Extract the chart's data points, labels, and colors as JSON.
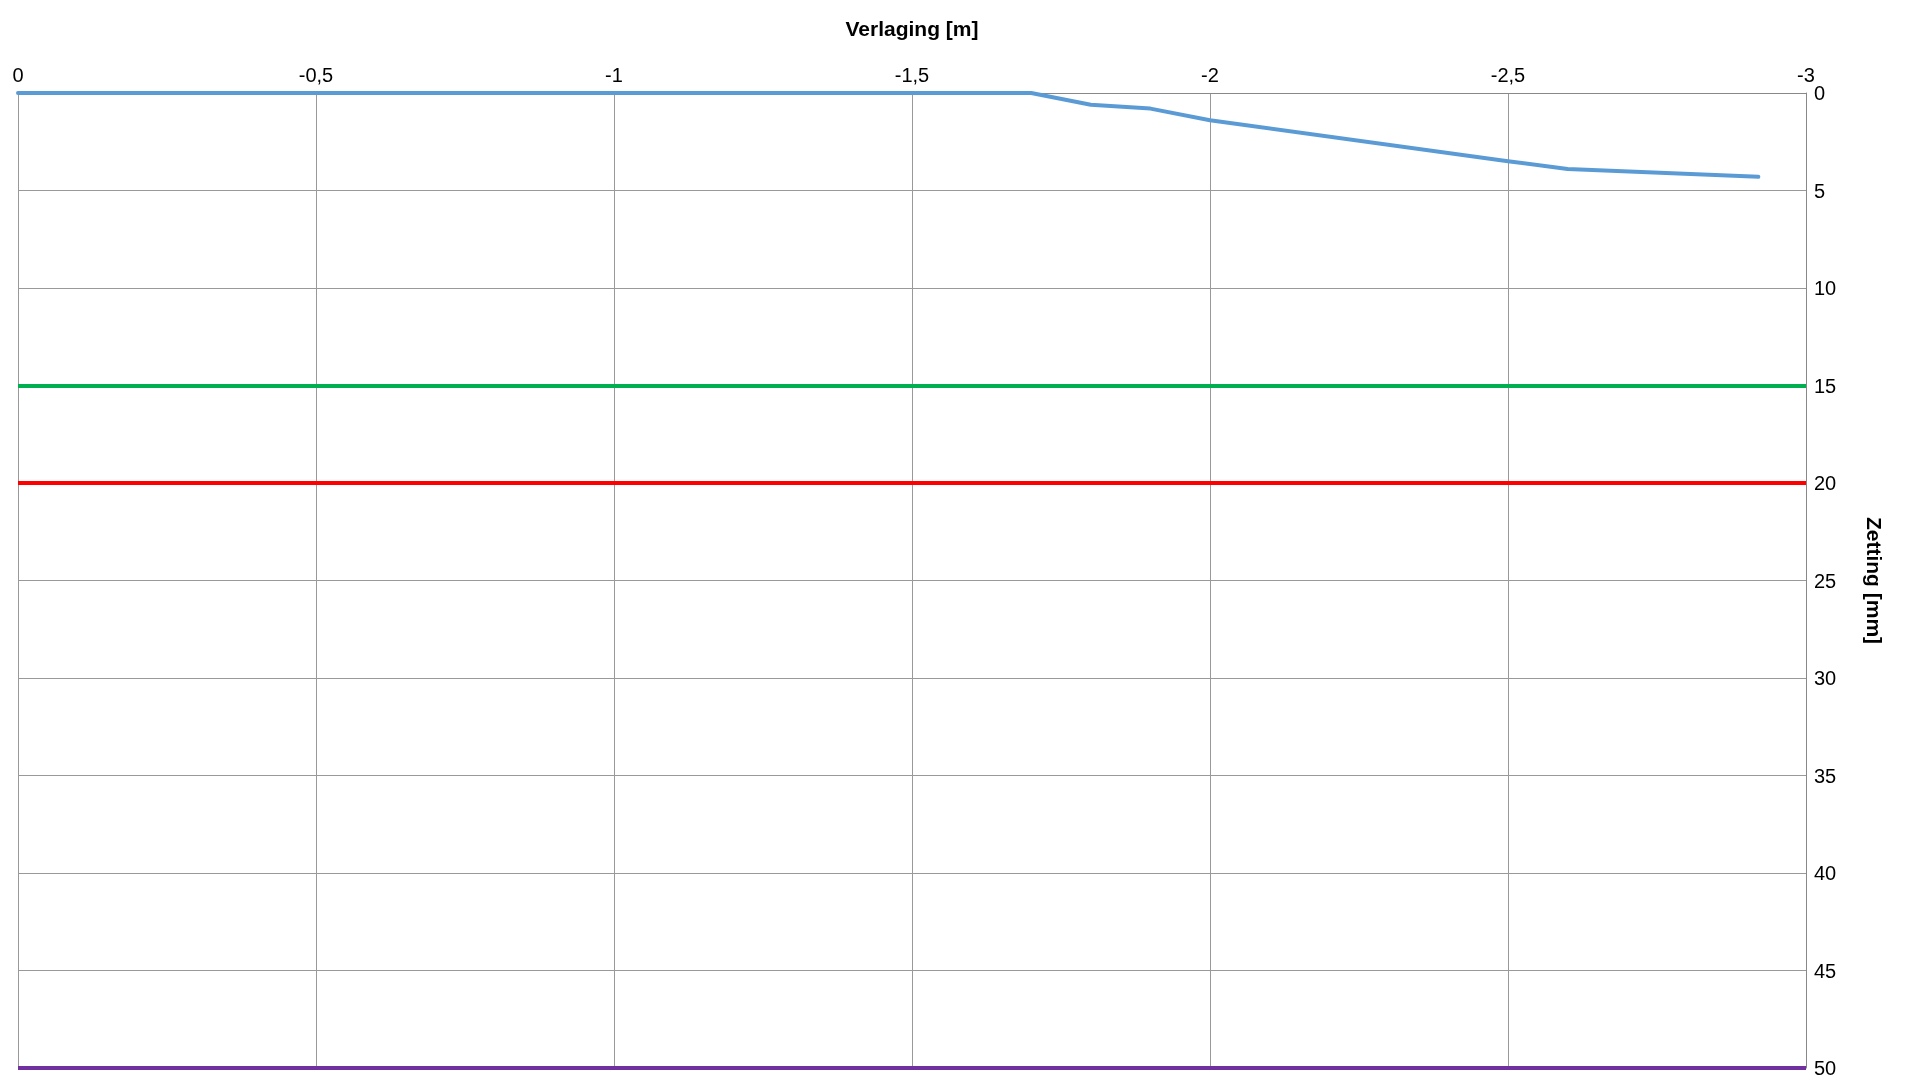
{
  "chart_data": {
    "type": "line",
    "xlabel": "Verlaging [m]",
    "ylabel": "Zetting [mm]",
    "x": [
      0,
      -1.7,
      -1.8,
      -1.9,
      -2.0,
      -2.5,
      -2.6,
      -2.92
    ],
    "series": [
      {
        "color": "#5b9bd5",
        "values": [
          0,
          0,
          0.6,
          0.8,
          1.4,
          3.5,
          3.9,
          4.3
        ]
      }
    ],
    "xlim": [
      0,
      -3
    ],
    "xticks": [
      0,
      {
        "value": -0.5,
        "label": "-0,5"
      },
      -1,
      {
        "value": -1.5,
        "label": "-1,5"
      },
      -2,
      {
        "value": -2.5,
        "label": "-2,5"
      },
      -3
    ],
    "ylim": [
      50,
      0
    ],
    "yticks": [
      0,
      5,
      10,
      15,
      20,
      25,
      30,
      35,
      40,
      45,
      50
    ],
    "ref_lines": [
      {
        "axis": "y",
        "value": 15,
        "color": "#00b050"
      },
      {
        "axis": "y",
        "value": 20,
        "color": "#ff0000"
      },
      {
        "axis": "y",
        "value": 50,
        "color": "#7030a0"
      }
    ],
    "grid": true,
    "marker": "none",
    "line_style": "solid"
  }
}
